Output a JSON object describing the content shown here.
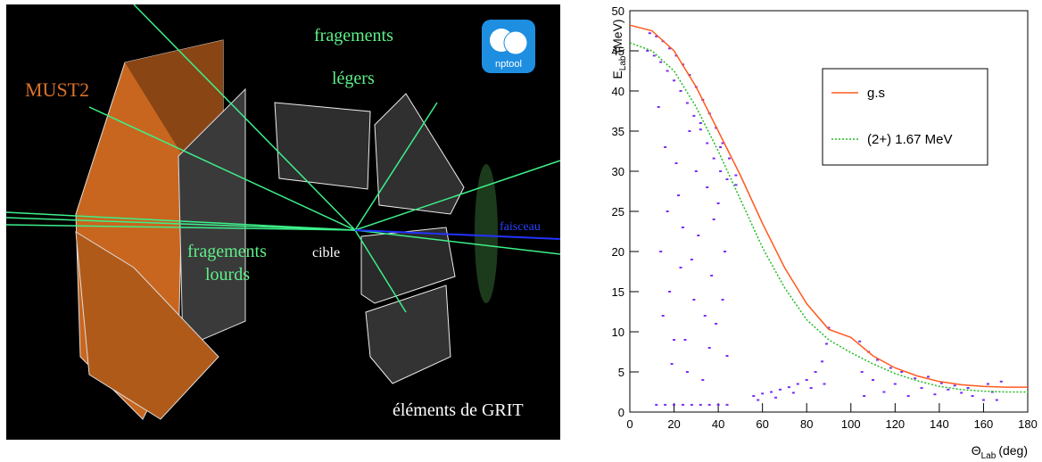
{
  "scene": {
    "logo": "nptool",
    "must2": "MUST2",
    "light_fragments": [
      "fragements",
      "légers"
    ],
    "heavy_fragments": [
      "fragements",
      "lourds"
    ],
    "target": "cible",
    "beam": "faisceau",
    "grit": "éléments de GRIT"
  },
  "chart_data": {
    "type": "line",
    "x_label": {
      "symbol": "Θ",
      "subscript": "Lab",
      "unit": "(deg)"
    },
    "y_label": {
      "symbol": "E",
      "subscript": "Lab",
      "unit": "(MeV)"
    },
    "xlim": [
      0,
      180
    ],
    "ylim": [
      0,
      50
    ],
    "xticks": [
      0,
      20,
      40,
      60,
      80,
      100,
      120,
      140,
      160,
      180
    ],
    "yticks": [
      0,
      5,
      10,
      15,
      20,
      25,
      30,
      35,
      40,
      45,
      50
    ],
    "x": [
      0,
      10,
      20,
      30,
      40,
      50,
      60,
      70,
      80,
      90,
      100,
      110,
      120,
      130,
      140,
      150,
      160,
      170,
      180
    ],
    "series": [
      {
        "name": "g.s",
        "color": "#ff5a1f",
        "dash": "solid",
        "values": [
          48.2,
          47.5,
          45,
          40.5,
          35,
          29.5,
          23.5,
          18,
          13.5,
          10.3,
          9.3,
          7,
          5.5,
          4.5,
          3.8,
          3.4,
          3.2,
          3.1,
          3.1
        ]
      },
      {
        "name": "(2+) 1.67 MeV",
        "color": "#22bb22",
        "dash": "dotted",
        "values": [
          46,
          45,
          42.5,
          38,
          32.5,
          26.5,
          20.5,
          15.5,
          11.5,
          9,
          7.4,
          6,
          4.8,
          3.9,
          3.2,
          2.8,
          2.6,
          2.5,
          2.5
        ]
      }
    ],
    "scatter": {
      "color": "#7a2cf5",
      "x": [
        9,
        12,
        15,
        18,
        21,
        24,
        27,
        30,
        33,
        36,
        39,
        42,
        45,
        48,
        8,
        11,
        14,
        17,
        20,
        23,
        26,
        29,
        32,
        35,
        38,
        41,
        44,
        48,
        13,
        15,
        17,
        19,
        21,
        23,
        25,
        27,
        29,
        31,
        33,
        35,
        37,
        39,
        41,
        43,
        44,
        14,
        18,
        22,
        26,
        30,
        34,
        38,
        42,
        16,
        20,
        24,
        28,
        32,
        36,
        40,
        12,
        16,
        20,
        24,
        28,
        32,
        36,
        40,
        44,
        56,
        60,
        64,
        68,
        72,
        76,
        80,
        84,
        87,
        89,
        90,
        58,
        66,
        74,
        82,
        88,
        104,
        105,
        106,
        108,
        110,
        112,
        115,
        118,
        120,
        123,
        126,
        129,
        132,
        135,
        138,
        141,
        144,
        147,
        150,
        153,
        155,
        160,
        162,
        164,
        166,
        168
      ],
      "y": [
        47.2,
        46.8,
        46.2,
        45.3,
        44.4,
        43.3,
        42,
        40.5,
        38.9,
        37.2,
        35.4,
        33.5,
        31.6,
        29.5,
        45,
        44.4,
        43.6,
        42.5,
        41.3,
        40,
        38.5,
        36.9,
        35.2,
        33.5,
        31.6,
        30,
        29,
        28.3,
        38,
        12,
        25,
        6,
        31,
        18,
        9,
        35,
        14,
        22,
        4,
        28,
        17,
        11,
        33,
        20,
        7,
        20,
        15,
        27,
        5,
        30,
        12,
        24,
        14,
        33,
        9,
        23,
        19,
        36,
        8,
        26,
        0.9,
        0.9,
        0.9,
        0.9,
        0.9,
        0.9,
        0.9,
        0.9,
        0.9,
        2,
        2.3,
        2.5,
        2.8,
        3.1,
        3.5,
        4,
        5,
        6.3,
        8.5,
        10.5,
        1.5,
        1.8,
        2.4,
        3,
        3.5,
        8.8,
        5,
        2,
        7.5,
        4,
        6.5,
        2.5,
        5.5,
        3.5,
        5,
        2,
        4.2,
        3,
        4.4,
        2.2,
        3.6,
        2.8,
        3.3,
        2.4,
        3,
        2,
        1.5,
        3.5,
        2.5,
        1.5,
        3.8
      ]
    }
  }
}
